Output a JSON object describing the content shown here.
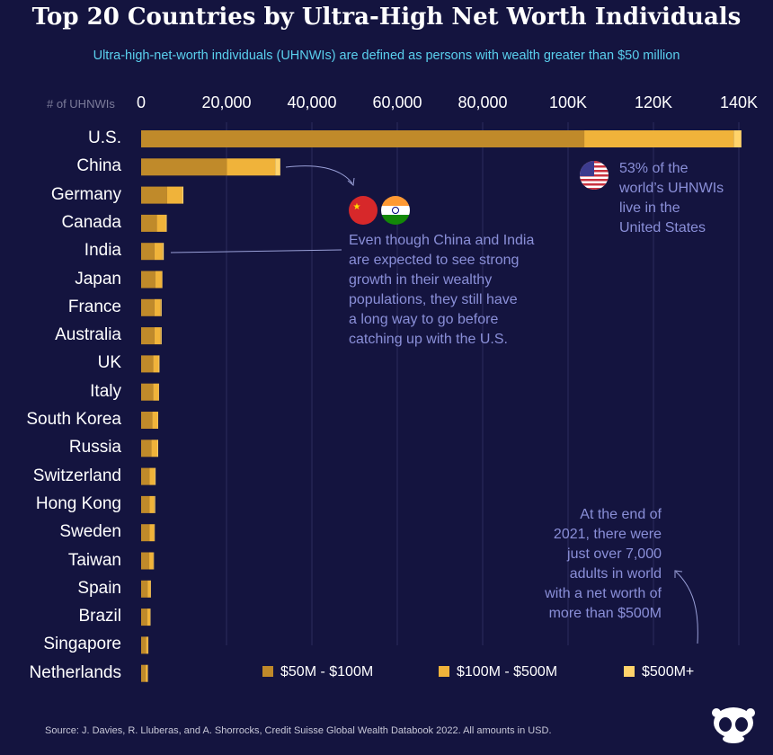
{
  "title": "Top 20 Countries by Ultra-High Net Worth Individuals",
  "subtitle": "Ultra-high-net-worth individuals (UHNWIs) are defined as persons with wealth greater than $50 million",
  "axis_label": "# of UHNWIs",
  "annotations": {
    "us": [
      "53% of the",
      "world’s UHNWIs",
      "live in the",
      "United States"
    ],
    "china_india": [
      "Even though China and India",
      "are expected to see strong",
      "growth in their wealthy",
      "populations, they still have",
      "a long way to go before",
      "catching up with the U.S."
    ],
    "billion": [
      "At the end of",
      "2021, there were",
      "just over 7,000",
      "adults in world",
      "with a net worth of",
      "more than $500M"
    ]
  },
  "source": "Source: J. Davies, R. Lluberas, and A. Shorrocks, Credit Suisse Global Wealth Databook 2022. All amounts in USD.",
  "colors": {
    "background": "#14143f",
    "seg1": "#c08a2a",
    "seg2": "#f0b33a",
    "seg3": "#ffd36b",
    "annotation": "#8a8fd8"
  },
  "chart_data": {
    "type": "bar",
    "orientation": "horizontal",
    "stacked": true,
    "title": "Top 20 Countries by Ultra-High Net Worth Individuals",
    "xlabel": "# of UHNWIs",
    "xlim": [
      0,
      140000
    ],
    "ticks": [
      {
        "value": 0,
        "label": "0"
      },
      {
        "value": 20000,
        "label": "20,000"
      },
      {
        "value": 40000,
        "label": "40,000"
      },
      {
        "value": 60000,
        "label": "60,000"
      },
      {
        "value": 80000,
        "label": "80,000"
      },
      {
        "value": 100000,
        "label": "100K"
      },
      {
        "value": 120000,
        "label": "120K"
      },
      {
        "value": 140000,
        "label": "140K"
      }
    ],
    "categories": [
      "U.S.",
      "China",
      "Germany",
      "Canada",
      "India",
      "Japan",
      "France",
      "Australia",
      "UK",
      "Italy",
      "South Korea",
      "Russia",
      "Switzerland",
      "Hong Kong",
      "Sweden",
      "Taiwan",
      "Spain",
      "Brazil",
      "Singapore",
      "Netherlands"
    ],
    "series": [
      {
        "name": "$50M - $100M",
        "values": [
          103800,
          20100,
          6100,
          3700,
          3100,
          3300,
          3100,
          3100,
          2800,
          2800,
          2600,
          2400,
          2000,
          2000,
          2000,
          1900,
          1500,
          1400,
          1100,
          1000
        ]
      },
      {
        "name": "$100M - $500M",
        "values": [
          35000,
          11300,
          3500,
          2100,
          1900,
          1600,
          1500,
          1500,
          1300,
          1300,
          1300,
          1400,
          1200,
          1100,
          1100,
          1000,
          700,
          700,
          500,
          500
        ]
      },
      {
        "name": "$500M+",
        "values": [
          1800,
          1200,
          300,
          200,
          300,
          100,
          200,
          200,
          200,
          100,
          100,
          200,
          200,
          200,
          100,
          100,
          100,
          100,
          100,
          100
        ]
      }
    ]
  }
}
